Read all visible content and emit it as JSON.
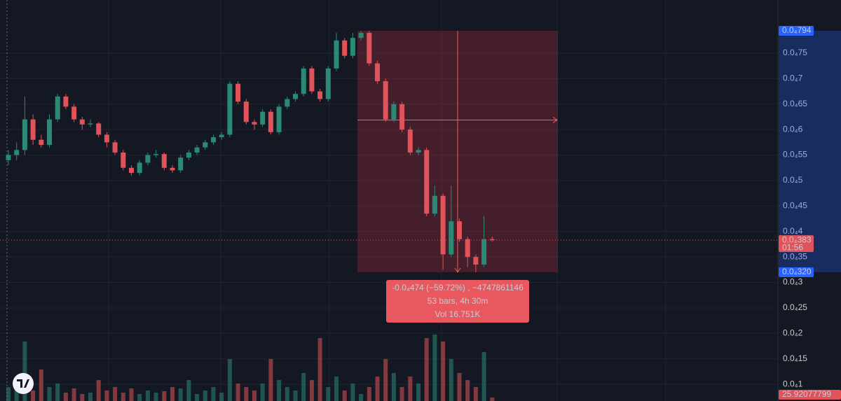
{
  "chart_data": {
    "type": "candlestick",
    "ohlc": [
      [
        5.4e-05,
        5.6e-05,
        5.3e-05,
        5.5e-05
      ],
      [
        5.5e-05,
        5.75e-05,
        5.4e-05,
        5.6e-05
      ],
      [
        5.6e-05,
        6.65e-05,
        5.5e-05,
        6.2e-05
      ],
      [
        6.2e-05,
        6.3e-05,
        5.7e-05,
        5.8e-05
      ],
      [
        5.8e-05,
        5.9e-05,
        5.65e-05,
        5.7e-05
      ],
      [
        5.7e-05,
        6.3e-05,
        5.65e-05,
        6.2e-05
      ],
      [
        6.2e-05,
        6.7e-05,
        6.15e-05,
        6.65e-05
      ],
      [
        6.65e-05,
        6.7e-05,
        6.4e-05,
        6.45e-05
      ],
      [
        6.45e-05,
        6.5e-05,
        6.15e-05,
        6.2e-05
      ],
      [
        6.2e-05,
        6.25e-05,
        6e-05,
        6.1e-05
      ],
      [
        6.1e-05,
        6.2e-05,
        6.05e-05,
        6.12e-05
      ],
      [
        6.12e-05,
        6.15e-05,
        5.85e-05,
        5.9e-05
      ],
      [
        5.9e-05,
        5.95e-05,
        5.65e-05,
        5.75e-05
      ],
      [
        5.75e-05,
        5.8e-05,
        5.5e-05,
        5.55e-05
      ],
      [
        5.55e-05,
        5.6e-05,
        5.2e-05,
        5.25e-05
      ],
      [
        5.25e-05,
        5.3e-05,
        5.1e-05,
        5.15e-05
      ],
      [
        5.15e-05,
        5.4e-05,
        5.1e-05,
        5.35e-05
      ],
      [
        5.35e-05,
        5.55e-05,
        5.3e-05,
        5.5e-05
      ],
      [
        5.5e-05,
        5.6e-05,
        5.45e-05,
        5.52e-05
      ],
      [
        5.52e-05,
        5.55e-05,
        5.2e-05,
        5.25e-05
      ],
      [
        5.25e-05,
        5.3e-05,
        5.15e-05,
        5.2e-05
      ],
      [
        5.2e-05,
        5.5e-05,
        5.15e-05,
        5.45e-05
      ],
      [
        5.45e-05,
        5.6e-05,
        5.4e-05,
        5.55e-05
      ],
      [
        5.55e-05,
        5.7e-05,
        5.5e-05,
        5.65e-05
      ],
      [
        5.65e-05,
        5.8e-05,
        5.6e-05,
        5.75e-05
      ],
      [
        5.75e-05,
        5.9e-05,
        5.7e-05,
        5.85e-05
      ],
      [
        5.85e-05,
        5.95e-05,
        5.8e-05,
        5.9e-05
      ],
      [
        5.9e-05,
        6.95e-05,
        5.85e-05,
        6.9e-05
      ],
      [
        6.9e-05,
        6.95e-05,
        6.5e-05,
        6.55e-05
      ],
      [
        6.55e-05,
        6.6e-05,
        6.1e-05,
        6.15e-05
      ],
      [
        6.15e-05,
        6.2e-05,
        6e-05,
        6.1e-05
      ],
      [
        6.1e-05,
        6.4e-05,
        6.05e-05,
        6.35e-05
      ],
      [
        6.35e-05,
        6.4e-05,
        5.9e-05,
        5.95e-05
      ],
      [
        5.95e-05,
        6.5e-05,
        5.9e-05,
        6.45e-05
      ],
      [
        6.45e-05,
        6.65e-05,
        6.4e-05,
        6.6e-05
      ],
      [
        6.6e-05,
        6.75e-05,
        6.55e-05,
        6.7e-05
      ],
      [
        6.7e-05,
        7.25e-05,
        6.65e-05,
        7.2e-05
      ],
      [
        7.2e-05,
        7.25e-05,
        6.7e-05,
        6.75e-05
      ],
      [
        6.75e-05,
        6.8e-05,
        6.55e-05,
        6.6e-05
      ],
      [
        6.6e-05,
        7.25e-05,
        6.55e-05,
        7.2e-05
      ],
      [
        7.2e-05,
        7.9e-05,
        7.15e-05,
        7.75e-05
      ],
      [
        7.75e-05,
        7.8e-05,
        7.4e-05,
        7.45e-05
      ],
      [
        7.45e-05,
        7.9e-05,
        7.4e-05,
        7.8e-05
      ],
      [
        7.8e-05,
        7.94e-05,
        7.75e-05,
        7.9e-05
      ],
      [
        7.9e-05,
        7.94e-05,
        7.25e-05,
        7.3e-05
      ],
      [
        7.3e-05,
        7.35e-05,
        6.9e-05,
        6.95e-05
      ],
      [
        6.95e-05,
        7e-05,
        6.15e-05,
        6.2e-05
      ],
      [
        6.2e-05,
        6.55e-05,
        6.15e-05,
        6.5e-05
      ],
      [
        6.5e-05,
        6.55e-05,
        5.95e-05,
        6e-05
      ],
      [
        6e-05,
        6.05e-05,
        5.5e-05,
        5.55e-05
      ],
      [
        5.55e-05,
        5.65e-05,
        5.5e-05,
        5.6e-05
      ],
      [
        5.6e-05,
        5.65e-05,
        4.3e-05,
        4.35e-05
      ],
      [
        4.35e-05,
        4.9e-05,
        4.3e-05,
        4.7e-05
      ],
      [
        4.7e-05,
        4.75e-05,
        3.25e-05,
        3.55e-05
      ],
      [
        3.55e-05,
        4.9e-05,
        3.5e-05,
        4.2e-05
      ],
      [
        4.2e-05,
        4.25e-05,
        3.8e-05,
        3.85e-05
      ],
      [
        3.85e-05,
        3.9e-05,
        3.3e-05,
        3.5e-05
      ],
      [
        3.5e-05,
        3.55e-05,
        3.2e-05,
        3.35e-05
      ],
      [
        3.35e-05,
        4.3e-05,
        3.3e-05,
        3.85e-05
      ],
      [
        3.85e-05,
        3.9e-05,
        3.8e-05,
        3.83e-05
      ]
    ],
    "volumes": [
      20,
      25,
      85,
      15,
      45,
      20,
      25,
      12,
      18,
      10,
      12,
      30,
      15,
      20,
      12,
      18,
      10,
      15,
      12,
      14,
      20,
      18,
      30,
      10,
      15,
      20,
      12,
      60,
      25,
      20,
      15,
      25,
      60,
      30,
      20,
      15,
      40,
      30,
      90,
      20,
      35,
      15,
      25,
      10,
      20,
      35,
      60,
      40,
      20,
      35,
      25,
      90,
      95,
      85,
      60,
      40,
      30,
      20,
      70,
      5
    ],
    "vlim": [
      0,
      100
    ],
    "up_color": "#2b8a76",
    "down_color": "#e0535a",
    "ylim": [
      6.72e-06,
      8.544e-05
    ],
    "yticks": [
      {
        "value": 1e-05,
        "label": "0.0₄1"
      },
      {
        "value": 1.5e-05,
        "label": "0.0₄15"
      },
      {
        "value": 2e-05,
        "label": "0.0₄2"
      },
      {
        "value": 2.5e-05,
        "label": "0.0₄25"
      },
      {
        "value": 3e-05,
        "label": "0.0₄3"
      },
      {
        "value": 3.5e-05,
        "label": "0.0₄35"
      },
      {
        "value": 4e-05,
        "label": "0.0₄4"
      },
      {
        "value": 4.5e-05,
        "label": "0.0₄45"
      },
      {
        "value": 5e-05,
        "label": "0.0₄5"
      },
      {
        "value": 5.5e-05,
        "label": "0.0₄55"
      },
      {
        "value": 6e-05,
        "label": "0.0₄6"
      },
      {
        "value": 6.5e-05,
        "label": "0.0₄65"
      },
      {
        "value": 7e-05,
        "label": "0.0₄7"
      },
      {
        "value": 7.5e-05,
        "label": "0.0₄75"
      }
    ],
    "price_labels": [
      {
        "value": 7.94e-05,
        "label": "0.0₄794"
      },
      {
        "value": 3.83e-05,
        "label": "0.0₄383",
        "countdown": "01:56"
      },
      {
        "value": 3.2e-05,
        "label": "0.0₄320"
      }
    ],
    "volume_label": "25.92077799",
    "measure_lines": [
      "-0.0₄474 (−59.72%) , −4747861146",
      "53 bars, 4h 30m",
      "Vol 16.751K"
    ]
  }
}
